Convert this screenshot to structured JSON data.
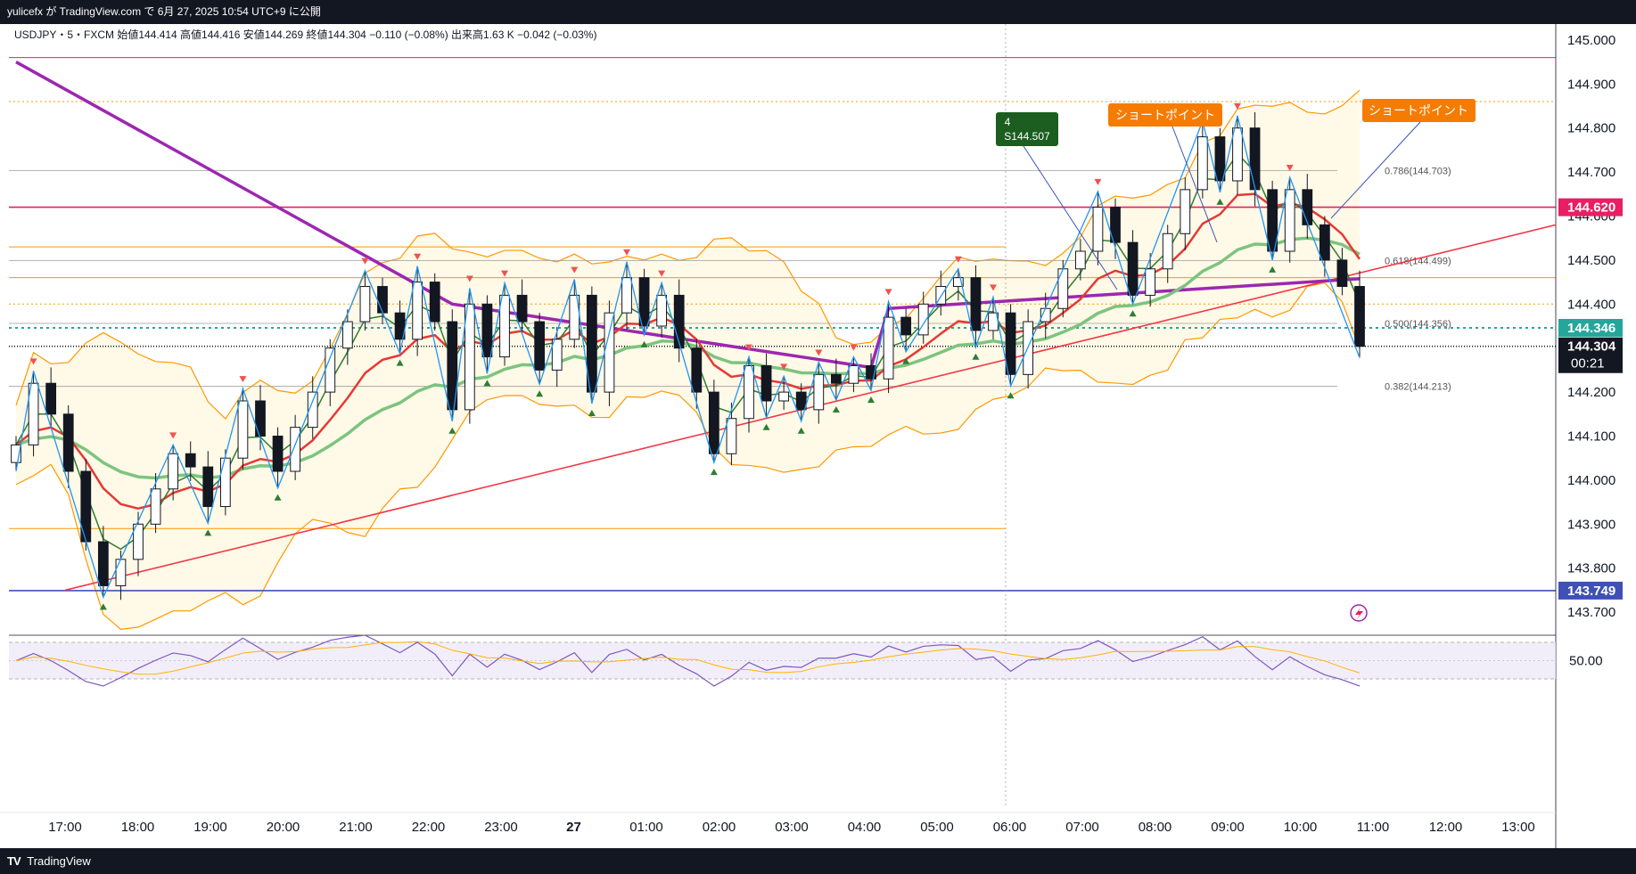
{
  "header": {
    "publish_text": "yulicefx が TradingView.com で 6月 27, 2025 10:54 UTC+9 に公開"
  },
  "legend": {
    "text": "USDJPY・5・FXCM  始値144.414  高値144.416  安値144.269  終値144.304  −0.110 (−0.08%)  出来高1.63 K  −0.042 (−0.03%)"
  },
  "footer": {
    "logo": "TV",
    "brand": "TradingView"
  },
  "labels": {
    "sell_box_number": "4",
    "sell_box_price": "S144.507",
    "short_point_1": "ショートポイント",
    "short_point_2": "ショートポイント",
    "countdown": "00:21"
  },
  "colors": {
    "bg": "#ffffff",
    "up": "#ffffff",
    "down": "#131722",
    "ema_fast": "#2e7d32",
    "ema_mid": "#e53935",
    "sma_slow": "#7cc47f",
    "sma_long": "#9c27b0",
    "bollinger": "#ff9800",
    "zigzag": "#2196f3",
    "trendline": "#f23645",
    "level_red": "#e91e63",
    "level_blue": "#3f51b5",
    "current": "#26a69a",
    "short_badge": "#f57c00",
    "sell_badge": "#1b5e20"
  },
  "chart_data": {
    "type": "candlestick",
    "symbol": "USDJPY",
    "timeframe": "5",
    "source": "FXCM",
    "ylim": [
      143.68,
      145.02
    ],
    "y_ticks": [
      "145.000",
      "144.900",
      "144.800",
      "144.700",
      "144.600",
      "144.500",
      "144.400",
      "144.300",
      "144.200",
      "144.100",
      "144.000",
      "143.900",
      "143.800",
      "143.700"
    ],
    "x_ticks": [
      "17:00",
      "18:00",
      "19:00",
      "20:00",
      "21:00",
      "22:00",
      "23:00",
      "27",
      "01:00",
      "02:00",
      "03:00",
      "04:00",
      "05:00",
      "06:00",
      "07:00",
      "08:00",
      "09:00",
      "10:00",
      "11:00",
      "12:00",
      "13:00"
    ],
    "ohlc_summary": {
      "open": 144.414,
      "high": 144.416,
      "low": 144.269,
      "close": 144.304,
      "change": -0.11,
      "change_pct": -0.08
    },
    "closes": [
      144.08,
      144.22,
      144.15,
      144.02,
      143.86,
      143.76,
      143.82,
      143.9,
      143.98,
      144.06,
      144.03,
      143.94,
      144.05,
      144.18,
      144.1,
      144.02,
      144.12,
      144.2,
      144.3,
      144.36,
      144.44,
      144.38,
      144.32,
      144.45,
      144.36,
      144.16,
      144.4,
      144.28,
      144.42,
      144.36,
      144.25,
      144.32,
      144.42,
      144.2,
      144.38,
      144.46,
      144.35,
      144.42,
      144.3,
      144.2,
      144.06,
      144.14,
      144.26,
      144.18,
      144.2,
      144.16,
      144.24,
      144.22,
      144.26,
      144.23,
      144.37,
      144.33,
      144.4,
      144.44,
      144.46,
      144.34,
      144.38,
      144.24,
      144.36,
      144.39,
      144.48,
      144.52,
      144.62,
      144.54,
      144.42,
      144.48,
      144.56,
      144.66,
      144.78,
      144.68,
      144.8,
      144.66,
      144.52,
      144.66,
      144.58,
      144.5,
      144.44,
      144.304
    ],
    "horizontal_levels": [
      {
        "price": 144.62,
        "label": "144.620",
        "color": "#e91e63"
      },
      {
        "price": 143.749,
        "label": "143.749",
        "color": "#3f51b5"
      },
      {
        "price": 144.346,
        "label": "144.346",
        "color": "#26a69a"
      },
      {
        "price": 144.304,
        "label": "144.304",
        "color": "#131722"
      }
    ],
    "fib_levels": [
      {
        "ratio": "0.786",
        "price": 144.703,
        "label": "0.786(144.703)"
      },
      {
        "ratio": "0.618",
        "price": 144.499,
        "label": "0.618(144.499)"
      },
      {
        "ratio": "0.500",
        "price": 144.356,
        "label": "0.500(144.356)"
      },
      {
        "ratio": "0.382",
        "price": 144.213,
        "label": "0.382(144.213)"
      }
    ],
    "dotted_levels": [
      144.96,
      144.86,
      144.4
    ],
    "orange_levels": [
      144.53,
      144.46,
      143.89
    ],
    "trendline": {
      "start": {
        "x": "17:00",
        "y": 143.75
      },
      "end": {
        "x": "11:00",
        "y": 144.52
      }
    },
    "oscillator": {
      "tick": "50.00",
      "upper": 70,
      "lower": 30
    }
  }
}
